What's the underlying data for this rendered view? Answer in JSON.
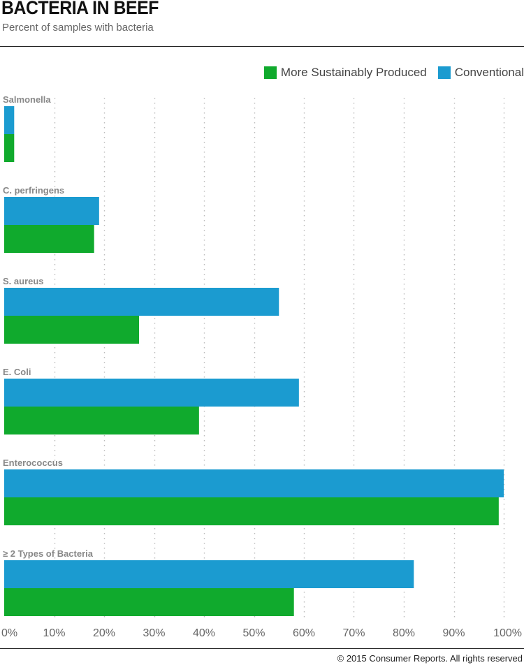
{
  "chart_data": {
    "type": "bar",
    "orientation": "horizontal",
    "title": "BACTERIA IN BEEF",
    "subtitle": "Percent of samples with bacteria",
    "categories": [
      "Salmonella",
      "C. perfringens",
      "S. aureus",
      "E. Coli",
      "Enterococcus",
      "≥ 2 Types of Bacteria"
    ],
    "series": [
      {
        "name": "Conventional",
        "color": "#1b9bd0",
        "values": [
          2,
          19,
          55,
          59,
          100,
          82
        ]
      },
      {
        "name": "More Sustainably Produced",
        "color": "#10aa2d",
        "values": [
          2,
          18,
          27,
          39,
          99,
          58
        ]
      }
    ],
    "legend_order": [
      "More Sustainably Produced",
      "Conventional"
    ],
    "xlim": [
      0,
      100
    ],
    "x_ticks": [
      0,
      10,
      20,
      30,
      40,
      50,
      60,
      70,
      80,
      90,
      100
    ],
    "x_tick_labels": [
      "0%",
      "10%",
      "20%",
      "30%",
      "40%",
      "50%",
      "60%",
      "70%",
      "80%",
      "90%",
      "100%"
    ],
    "grid": true,
    "legend_position": "top-right"
  },
  "legend": {
    "sustainable_label": "More Sustainably Produced",
    "conventional_label": "Conventional"
  },
  "footer": "© 2015 Consumer Reports. All rights reserved"
}
